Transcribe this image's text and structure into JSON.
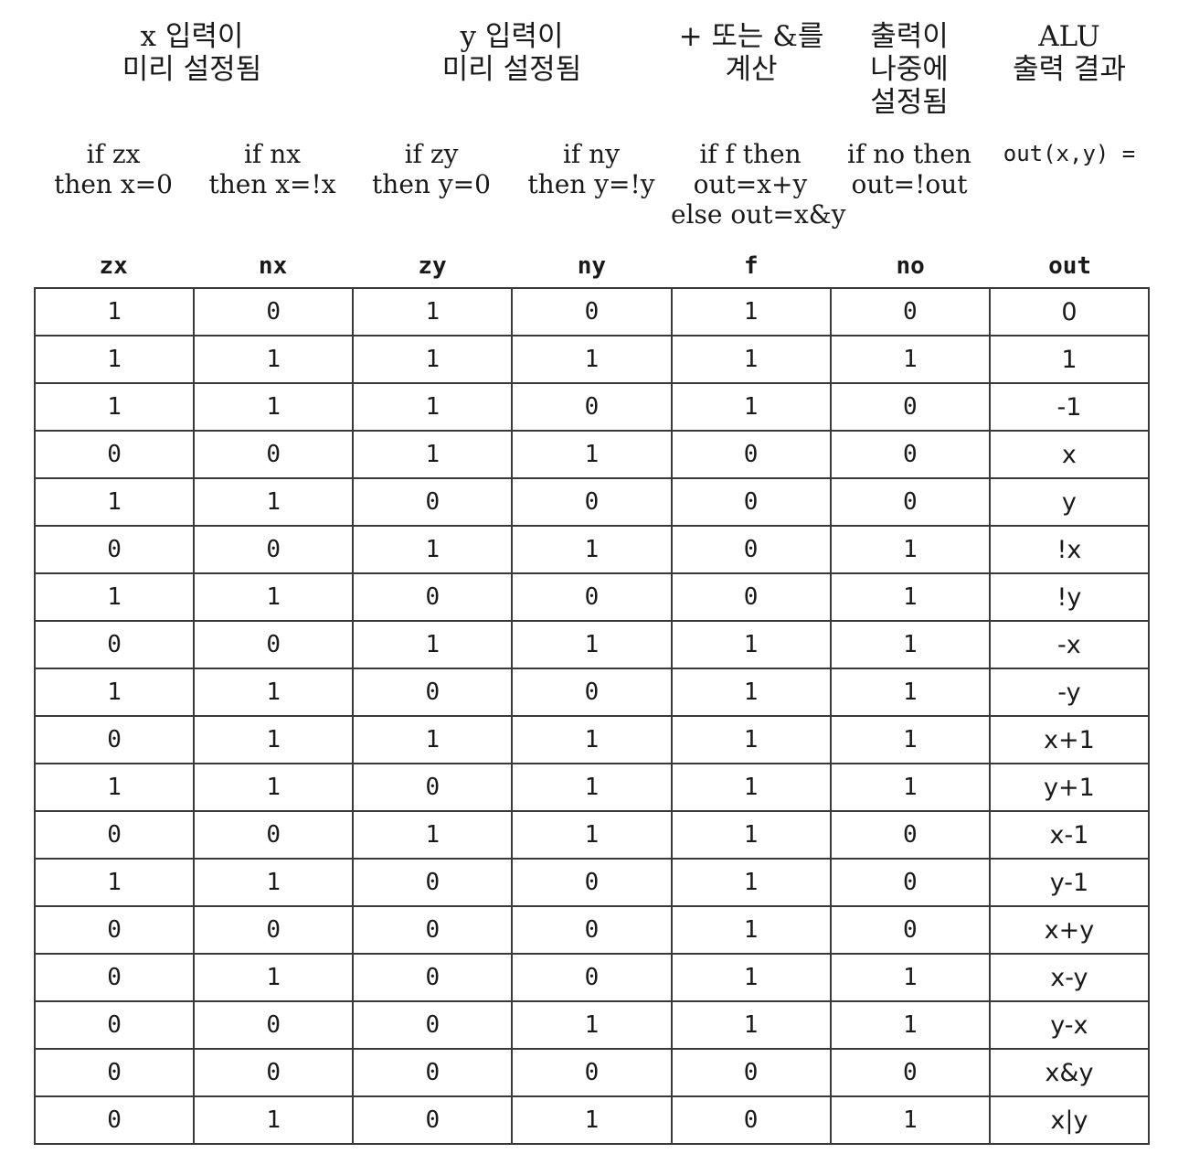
{
  "group_headers": [
    {
      "id": "x-preset",
      "lines": [
        "x 입력이",
        "미리 설정됨"
      ]
    },
    {
      "id": "y-preset",
      "lines": [
        "y 입력이",
        "미리 설정됨"
      ]
    },
    {
      "id": "compute",
      "lines": [
        "+ 또는 &를",
        "계산"
      ]
    },
    {
      "id": "post-set",
      "lines": [
        "출력이",
        "나중에",
        "설정됨"
      ]
    },
    {
      "id": "result",
      "lines": [
        "ALU",
        "출력 결과"
      ]
    }
  ],
  "descriptions": {
    "zx": [
      "if zx",
      "then x=0"
    ],
    "nx": [
      "if nx",
      "then x=!x"
    ],
    "zy": [
      "if zy",
      "then y=0"
    ],
    "ny": [
      "if ny",
      "then y=!y"
    ],
    "f": [
      "if f then",
      "out=x+y",
      "else out=x&y"
    ],
    "no": [
      "if no then",
      "out=!out"
    ],
    "out": [
      "out(x,y) ="
    ]
  },
  "columns": [
    "zx",
    "nx",
    "zy",
    "ny",
    "f",
    "no",
    "out"
  ],
  "rows": [
    [
      "1",
      "0",
      "1",
      "0",
      "1",
      "0",
      "0"
    ],
    [
      "1",
      "1",
      "1",
      "1",
      "1",
      "1",
      "1"
    ],
    [
      "1",
      "1",
      "1",
      "0",
      "1",
      "0",
      "-1"
    ],
    [
      "0",
      "0",
      "1",
      "1",
      "0",
      "0",
      "x"
    ],
    [
      "1",
      "1",
      "0",
      "0",
      "0",
      "0",
      "y"
    ],
    [
      "0",
      "0",
      "1",
      "1",
      "0",
      "1",
      "!x"
    ],
    [
      "1",
      "1",
      "0",
      "0",
      "0",
      "1",
      "!y"
    ],
    [
      "0",
      "0",
      "1",
      "1",
      "1",
      "1",
      "-x"
    ],
    [
      "1",
      "1",
      "0",
      "0",
      "1",
      "1",
      "-y"
    ],
    [
      "0",
      "1",
      "1",
      "1",
      "1",
      "1",
      "x+1"
    ],
    [
      "1",
      "1",
      "0",
      "1",
      "1",
      "1",
      "y+1"
    ],
    [
      "0",
      "0",
      "1",
      "1",
      "1",
      "0",
      "x-1"
    ],
    [
      "1",
      "1",
      "0",
      "0",
      "1",
      "0",
      "y-1"
    ],
    [
      "0",
      "0",
      "0",
      "0",
      "1",
      "0",
      "x+y"
    ],
    [
      "0",
      "1",
      "0",
      "0",
      "1",
      "1",
      "x-y"
    ],
    [
      "0",
      "0",
      "0",
      "1",
      "1",
      "1",
      "y-x"
    ],
    [
      "0",
      "0",
      "0",
      "0",
      "0",
      "0",
      "x&y"
    ],
    [
      "0",
      "1",
      "0",
      "1",
      "0",
      "1",
      "x|y"
    ]
  ]
}
